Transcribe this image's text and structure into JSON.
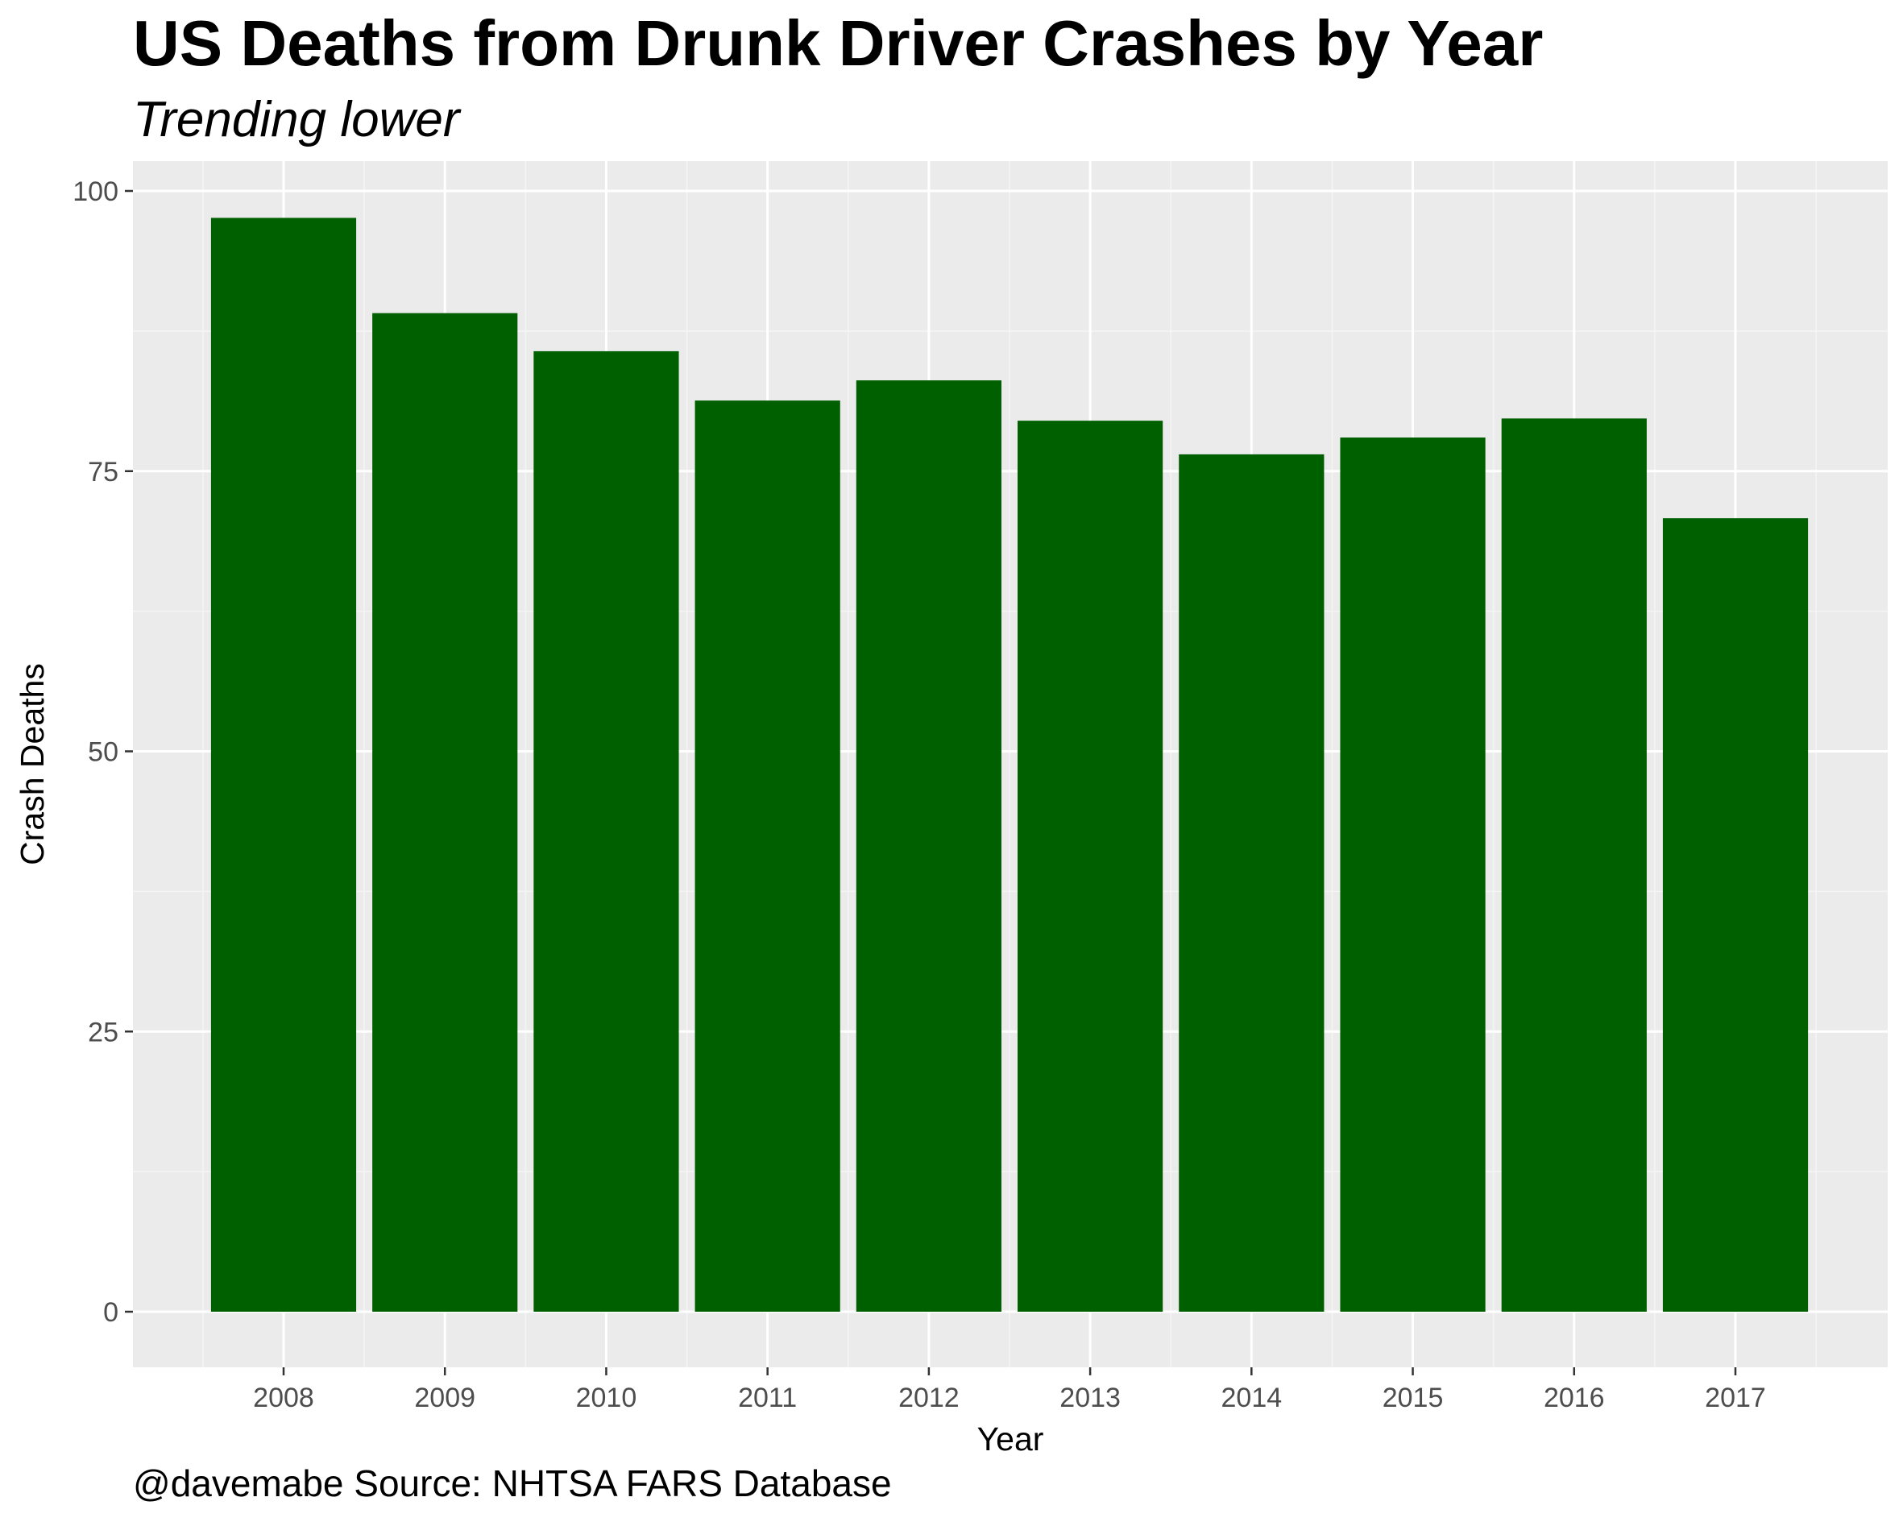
{
  "title": "US Deaths from Drunk Driver Crashes by Year",
  "subtitle": "Trending lower",
  "caption": "@davemabe Source: NHTSA FARS Database",
  "colors": {
    "bar": "#006000",
    "panel_background": "#ebebeb",
    "grid_major": "#ffffff",
    "grid_minor": "#f5f5f5",
    "tick_text": "#4d4d4d",
    "tick_mark": "#333333"
  },
  "chart_data": {
    "type": "bar",
    "title": "US Deaths from Drunk Driver Crashes by Year",
    "subtitle": "Trending lower",
    "xlabel": "Year",
    "ylabel": "Crash Deaths",
    "categories": [
      "2008",
      "2009",
      "2010",
      "2011",
      "2012",
      "2013",
      "2014",
      "2015",
      "2016",
      "2017"
    ],
    "values": [
      97.6,
      89.1,
      85.7,
      81.3,
      83.1,
      79.5,
      76.5,
      78.0,
      79.7,
      70.8
    ],
    "ylim": [
      0,
      100
    ],
    "yticks": [
      "0",
      "25",
      "50",
      "75",
      "100"
    ],
    "grid": true,
    "legend": "none"
  }
}
